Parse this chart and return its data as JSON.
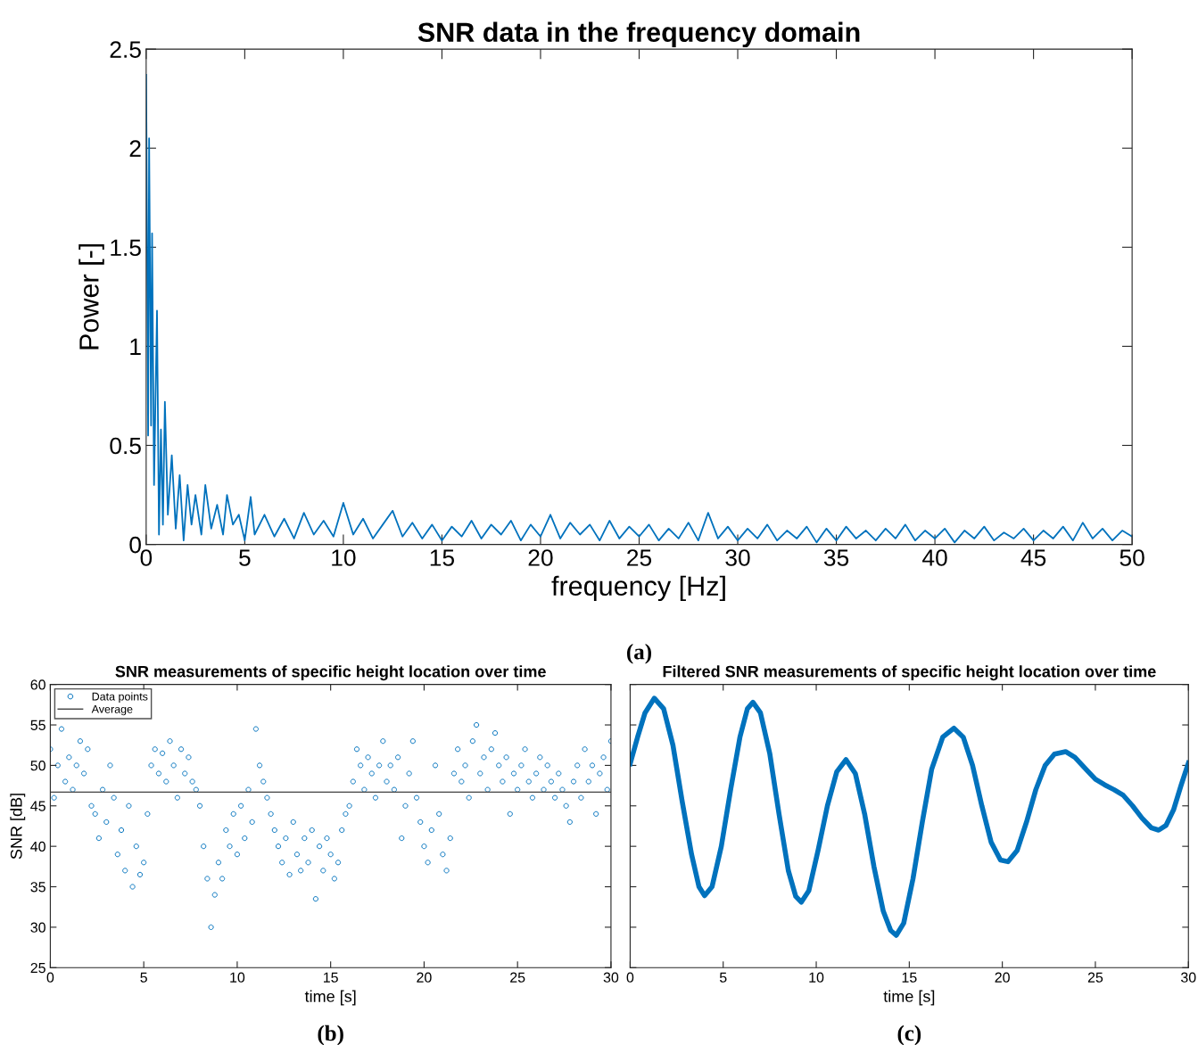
{
  "chart_data": [
    {
      "type": "line",
      "title": "SNR data in the frequency domain",
      "xlabel": "frequency [Hz]",
      "ylabel": "Power [-]",
      "annotations": [
        "(a)"
      ],
      "xlim": [
        0,
        50
      ],
      "ylim": [
        0,
        2.5
      ],
      "xticks": [
        0,
        5,
        10,
        15,
        20,
        25,
        30,
        35,
        40,
        45,
        50
      ],
      "yticks": [
        0,
        0.5,
        1,
        1.5,
        2,
        2.5
      ],
      "grid": false,
      "legend": false,
      "series": [
        {
          "color": "#0072bd",
          "x": [
            0.0,
            0.1,
            0.15,
            0.25,
            0.3,
            0.4,
            0.55,
            0.65,
            0.75,
            0.85,
            0.95,
            1.1,
            1.3,
            1.5,
            1.7,
            1.9,
            2.1,
            2.3,
            2.5,
            2.8,
            3.0,
            3.3,
            3.6,
            3.9,
            4.1,
            4.4,
            4.7,
            5.0,
            5.3,
            5.5,
            6,
            6.5,
            7,
            7.5,
            8,
            8.5,
            9,
            9.5,
            10,
            10.5,
            11,
            11.5,
            12,
            12.5,
            13,
            13.5,
            14,
            14.5,
            15,
            15.5,
            16,
            16.5,
            17,
            17.5,
            18,
            18.5,
            19,
            19.5,
            20,
            20.5,
            21,
            21.5,
            22,
            22.5,
            23,
            23.5,
            24,
            24.5,
            25,
            25.5,
            26,
            26.5,
            27,
            27.5,
            28,
            28.5,
            29,
            29.5,
            30,
            30.5,
            31,
            31.5,
            32,
            32.5,
            33,
            33.5,
            34,
            34.5,
            35,
            35.5,
            36,
            36.5,
            37,
            37.5,
            38,
            38.5,
            39,
            39.5,
            40,
            40.5,
            41,
            41.5,
            42,
            42.5,
            43,
            43.5,
            44,
            44.5,
            45,
            45.5,
            46,
            46.5,
            47,
            47.5,
            48,
            48.5,
            49,
            49.5,
            50
          ],
          "values": [
            2.37,
            0.55,
            2.05,
            0.6,
            1.57,
            0.3,
            1.18,
            0.05,
            0.58,
            0.1,
            0.72,
            0.15,
            0.45,
            0.08,
            0.35,
            0.02,
            0.3,
            0.1,
            0.25,
            0.05,
            0.3,
            0.08,
            0.2,
            0.05,
            0.25,
            0.1,
            0.15,
            0.02,
            0.24,
            0.05,
            0.15,
            0.04,
            0.13,
            0.03,
            0.16,
            0.05,
            0.12,
            0.04,
            0.21,
            0.05,
            0.13,
            0.03,
            0.1,
            0.17,
            0.04,
            0.11,
            0.03,
            0.1,
            0.02,
            0.09,
            0.04,
            0.12,
            0.03,
            0.1,
            0.05,
            0.12,
            0.02,
            0.1,
            0.04,
            0.15,
            0.03,
            0.11,
            0.05,
            0.1,
            0.02,
            0.12,
            0.03,
            0.09,
            0.04,
            0.1,
            0.02,
            0.08,
            0.03,
            0.11,
            0.02,
            0.16,
            0.03,
            0.09,
            0.02,
            0.08,
            0.03,
            0.1,
            0.02,
            0.07,
            0.03,
            0.09,
            0.01,
            0.08,
            0.02,
            0.09,
            0.03,
            0.07,
            0.02,
            0.08,
            0.03,
            0.1,
            0.02,
            0.07,
            0.03,
            0.08,
            0.01,
            0.07,
            0.03,
            0.09,
            0.02,
            0.06,
            0.03,
            0.08,
            0.02,
            0.07,
            0.03,
            0.09,
            0.02,
            0.11,
            0.03,
            0.08,
            0.02,
            0.07,
            0.04
          ]
        }
      ]
    },
    {
      "type": "scatter",
      "title": "SNR measurements of specific height location over time",
      "xlabel": "time [s]",
      "ylabel": "SNR [dB]",
      "annotations": [
        "(b)"
      ],
      "xlim": [
        0,
        30
      ],
      "ylim": [
        25,
        60
      ],
      "xticks": [
        0,
        5,
        10,
        15,
        20,
        25,
        30
      ],
      "yticks": [
        25,
        30,
        35,
        40,
        45,
        50,
        55,
        60
      ],
      "grid": false,
      "legend": "top left",
      "marker": "circle",
      "ref_lines": [
        {
          "axis": "y",
          "value": 46.7,
          "label": "Average",
          "color": "#404040"
        }
      ],
      "series": [
        {
          "name": "Data points",
          "color": "#0072bd",
          "x": [
            0.0,
            0.2,
            0.4,
            0.6,
            0.8,
            1.0,
            1.2,
            1.4,
            1.6,
            1.8,
            2.0,
            2.2,
            2.4,
            2.6,
            2.8,
            3.0,
            3.2,
            3.4,
            3.6,
            3.8,
            4.0,
            4.2,
            4.4,
            4.6,
            4.8,
            5.0,
            5.2,
            5.4,
            5.6,
            5.8,
            6.0,
            6.2,
            6.4,
            6.6,
            6.8,
            7.0,
            7.2,
            7.4,
            7.6,
            7.8,
            8.0,
            8.2,
            8.4,
            8.6,
            8.8,
            9.0,
            9.2,
            9.4,
            9.6,
            9.8,
            10.0,
            10.2,
            10.4,
            10.6,
            10.8,
            11.0,
            11.2,
            11.4,
            11.6,
            11.8,
            12.0,
            12.2,
            12.4,
            12.6,
            12.8,
            13.0,
            13.2,
            13.4,
            13.6,
            13.8,
            14.0,
            14.2,
            14.4,
            14.6,
            14.8,
            15.0,
            15.2,
            15.4,
            15.6,
            15.8,
            16.0,
            16.2,
            16.4,
            16.6,
            16.8,
            17.0,
            17.2,
            17.4,
            17.6,
            17.8,
            18.0,
            18.2,
            18.4,
            18.6,
            18.8,
            19.0,
            19.2,
            19.4,
            19.6,
            19.8,
            20.0,
            20.2,
            20.4,
            20.6,
            20.8,
            21.0,
            21.2,
            21.4,
            21.6,
            21.8,
            22.0,
            22.2,
            22.4,
            22.6,
            22.8,
            23.0,
            23.2,
            23.4,
            23.6,
            23.8,
            24.0,
            24.2,
            24.4,
            24.6,
            24.8,
            25.0,
            25.2,
            25.4,
            25.6,
            25.8,
            26.0,
            26.2,
            26.4,
            26.6,
            26.8,
            27.0,
            27.2,
            27.4,
            27.6,
            27.8,
            28.0,
            28.2,
            28.4,
            28.6,
            28.8,
            29.0,
            29.2,
            29.4,
            29.6,
            29.8,
            30.0
          ],
          "values": [
            52,
            46,
            50,
            54.5,
            48,
            51,
            47,
            50,
            53,
            49,
            52,
            45,
            44,
            41,
            47,
            43,
            50,
            46,
            39,
            42,
            37,
            45,
            35,
            40,
            36.5,
            38,
            44,
            50,
            52,
            49,
            51.5,
            48,
            53,
            50,
            46,
            52,
            49,
            51,
            48,
            47,
            45,
            40,
            36,
            30,
            34,
            38,
            36,
            42,
            40,
            44,
            39,
            45,
            41,
            47,
            43,
            54.5,
            50,
            48,
            46,
            44,
            42,
            40,
            38,
            41,
            36.5,
            43,
            39,
            37,
            41,
            38,
            42,
            33.5,
            40,
            37,
            41,
            39,
            36,
            38,
            42,
            44,
            45,
            48,
            52,
            50,
            47,
            51,
            49,
            46,
            50,
            53,
            48,
            50,
            47,
            51,
            41,
            45,
            49,
            53,
            46,
            43,
            40,
            38,
            42,
            50,
            44,
            39,
            37,
            41,
            49,
            52,
            48,
            50,
            46,
            53,
            55,
            49,
            51,
            47,
            52,
            54,
            50,
            48,
            51,
            44,
            49,
            47,
            50,
            52,
            48,
            46,
            49,
            51,
            47,
            50,
            48,
            46,
            49,
            47,
            45,
            43,
            48,
            50,
            46,
            52,
            48,
            50,
            44,
            49,
            51,
            47,
            53
          ]
        }
      ]
    },
    {
      "type": "line",
      "title": "Filtered SNR measurements of specific height location over time",
      "xlabel": "time [s]",
      "annotations": [
        "(c)"
      ],
      "xlim": [
        0,
        30
      ],
      "ylim": [
        25,
        60
      ],
      "xticks": [
        0,
        5,
        10,
        15,
        20,
        25,
        30
      ],
      "yticks": [
        25,
        30,
        35,
        40,
        45,
        50,
        55,
        60
      ],
      "tick_labels": "x",
      "grid": false,
      "legend": false,
      "series": [
        {
          "color": "#0072bd",
          "x": [
            0,
            0.4,
            0.8,
            1.3,
            1.8,
            2.3,
            2.8,
            3.3,
            3.7,
            4.0,
            4.4,
            4.9,
            5.4,
            5.9,
            6.3,
            6.6,
            7.0,
            7.5,
            8.0,
            8.5,
            8.9,
            9.2,
            9.6,
            10.1,
            10.6,
            11.1,
            11.6,
            12.1,
            12.6,
            13.1,
            13.6,
            14.0,
            14.3,
            14.7,
            15.2,
            15.7,
            16.2,
            16.8,
            17.4,
            17.9,
            18.4,
            18.9,
            19.4,
            19.9,
            20.3,
            20.8,
            21.3,
            21.8,
            22.3,
            22.8,
            23.4,
            23.9,
            24.5,
            25.0,
            25.5,
            26.0,
            26.5,
            27.0,
            27.5,
            28.0,
            28.4,
            28.8,
            29.2,
            29.6,
            30
          ],
          "values": [
            50.2,
            53.5,
            56.5,
            58.3,
            57.0,
            52.5,
            45.5,
            39.0,
            35.0,
            33.9,
            35.0,
            40.0,
            47.0,
            53.5,
            57.0,
            57.8,
            56.5,
            51.5,
            44.0,
            37.0,
            33.8,
            33.1,
            34.5,
            39.5,
            45.0,
            49.2,
            50.7,
            49.0,
            44.0,
            37.5,
            32.0,
            29.6,
            29.0,
            30.5,
            36.0,
            43.0,
            49.5,
            53.5,
            54.6,
            53.5,
            50.0,
            45.0,
            40.5,
            38.3,
            38.1,
            39.5,
            43.0,
            47.0,
            50.0,
            51.4,
            51.7,
            51.0,
            49.5,
            48.3,
            47.6,
            47.0,
            46.3,
            45.0,
            43.5,
            42.3,
            42.0,
            42.6,
            44.5,
            47.5,
            50.3
          ]
        }
      ]
    }
  ]
}
